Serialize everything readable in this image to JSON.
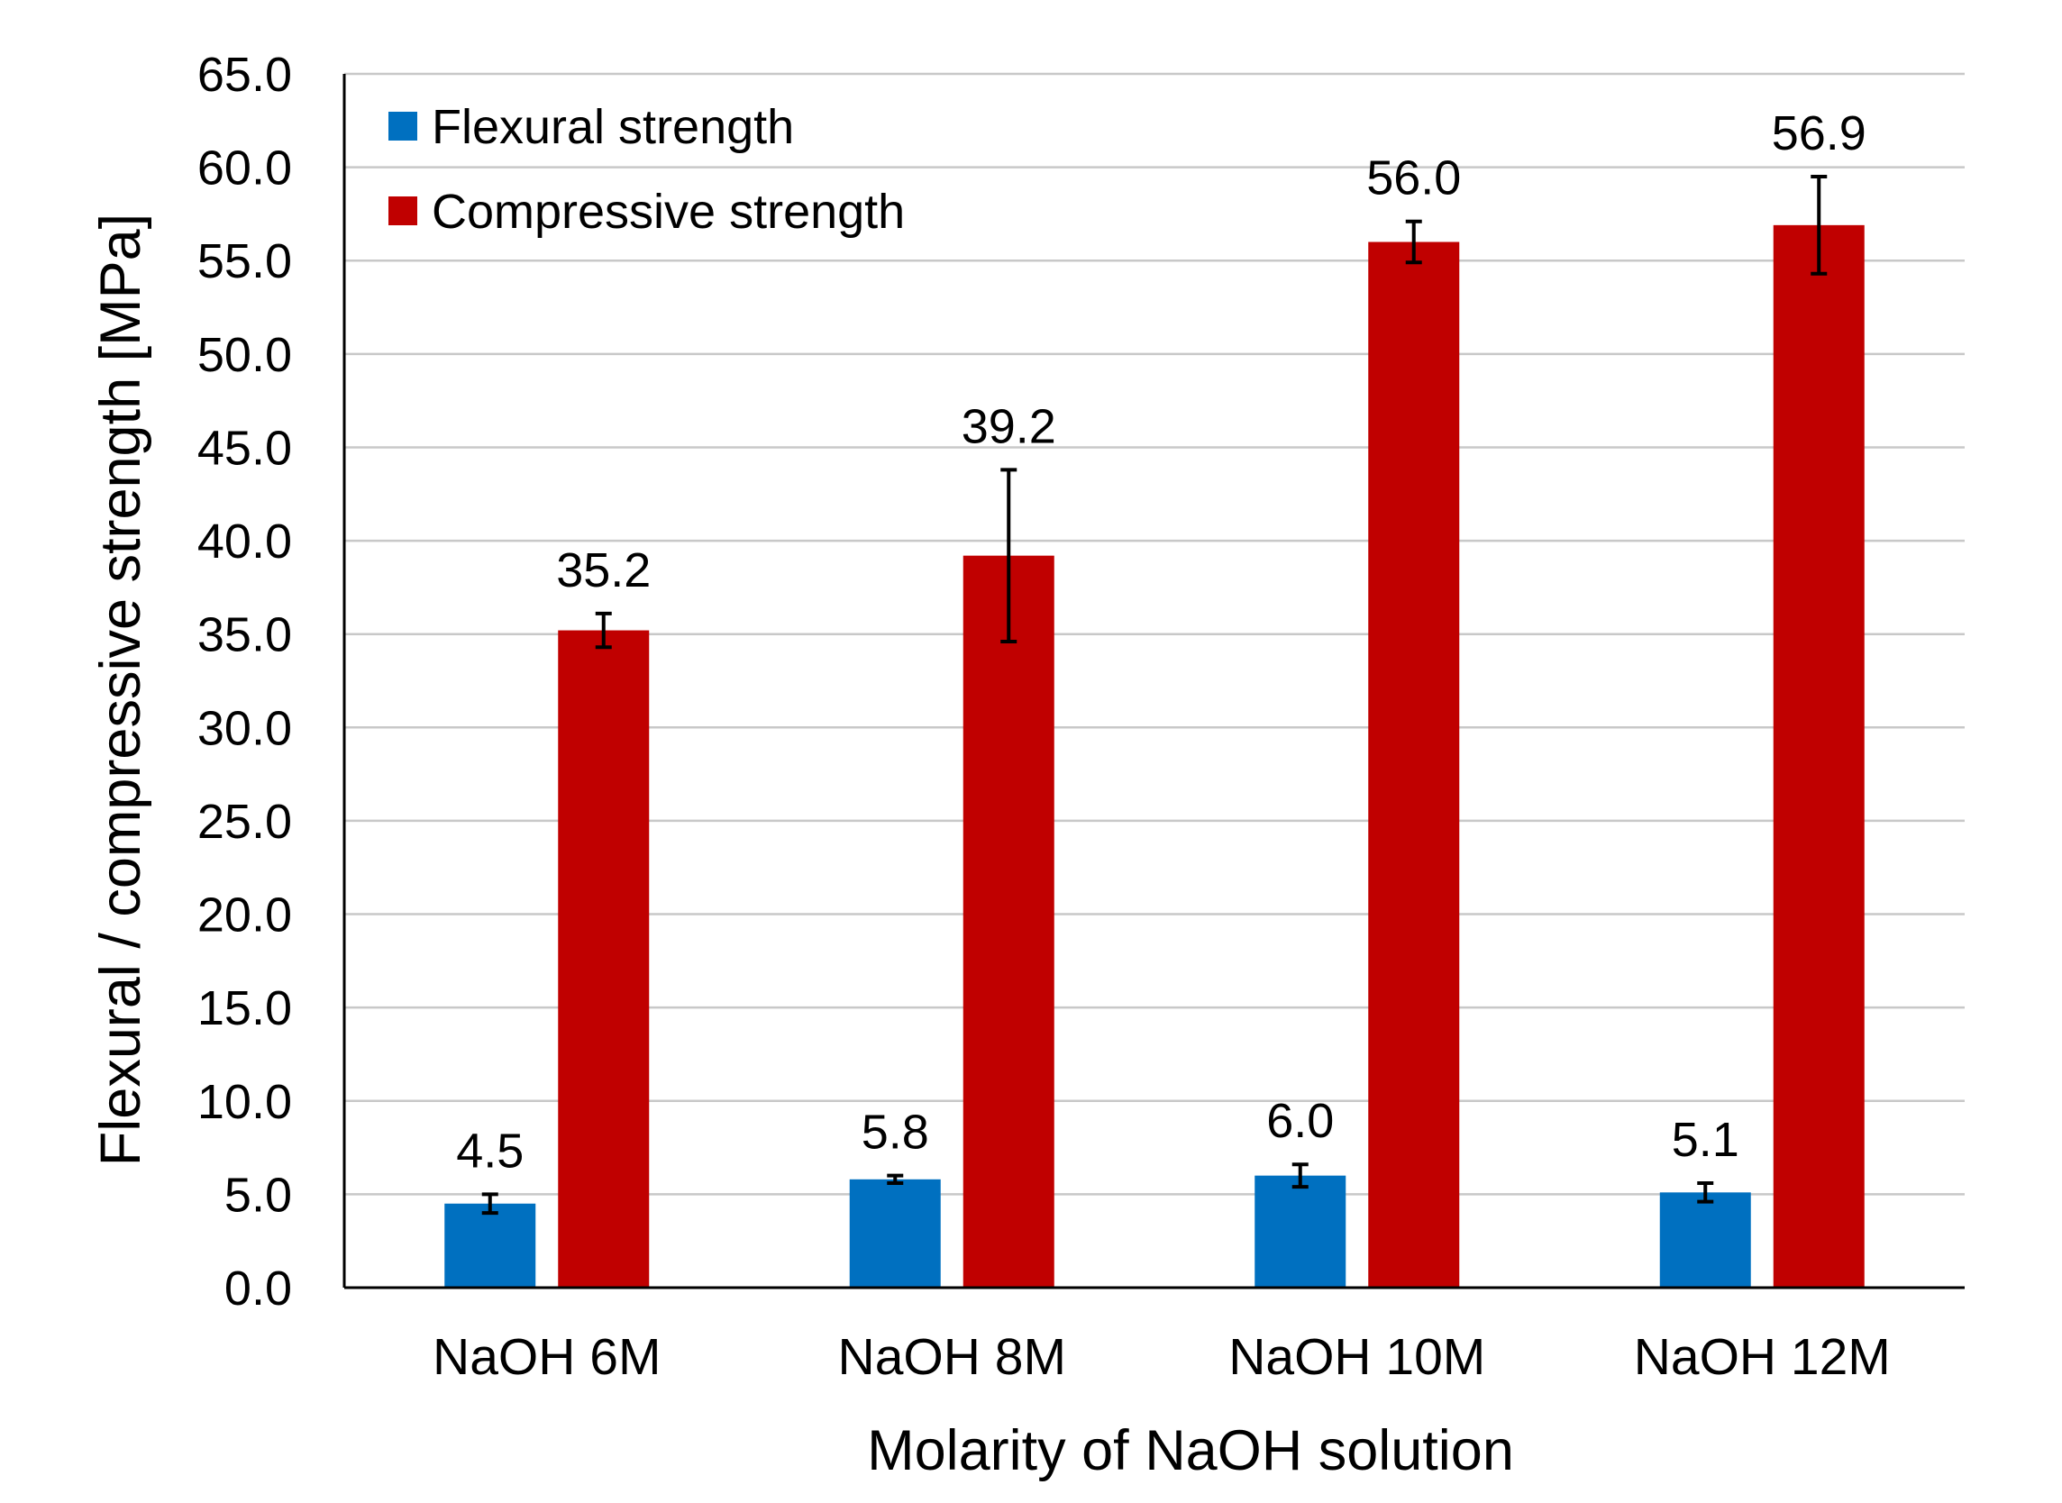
{
  "chart_data": {
    "type": "bar",
    "title": "",
    "xlabel": "Molarity of NaOH solution",
    "ylabel": "Flexural  / compressive strength [MPa]",
    "ylim": [
      0,
      65
    ],
    "ytick_step": 5,
    "ytick_labels": [
      "0.0",
      "5.0",
      "10.0",
      "15.0",
      "20.0",
      "25.0",
      "30.0",
      "35.0",
      "40.0",
      "45.0",
      "50.0",
      "55.0",
      "60.0",
      "65.0"
    ],
    "grid": true,
    "legend_position": "top-left",
    "categories": [
      "NaOH 6M",
      "NaOH 8M",
      "NaOH 10M",
      "NaOH 12M"
    ],
    "series": [
      {
        "name": "Flexural strength",
        "color": "#0070c0",
        "values": [
          4.5,
          5.8,
          6.0,
          5.1
        ],
        "labels": [
          "4.5",
          "5.8",
          "6.0",
          "5.1"
        ],
        "errors": [
          0.5,
          0.2,
          0.6,
          0.5
        ]
      },
      {
        "name": "Compressive strength",
        "color": "#c00000",
        "values": [
          35.2,
          39.2,
          56.0,
          56.9
        ],
        "labels": [
          "35.2",
          "39.2",
          "56.0",
          "56.9"
        ],
        "errors": [
          0.9,
          4.6,
          1.1,
          2.6
        ]
      }
    ]
  }
}
